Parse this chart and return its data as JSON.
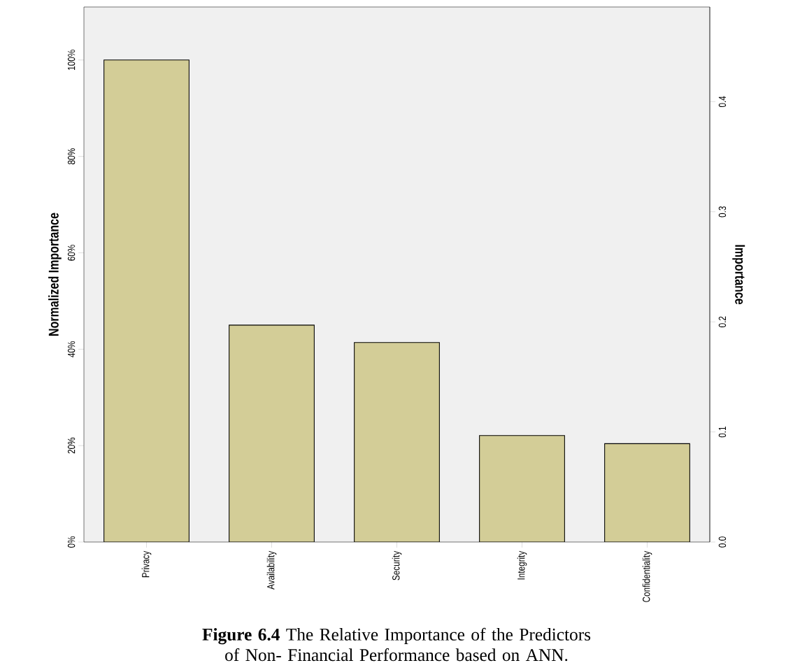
{
  "chart_data": {
    "type": "bar",
    "ylabel": "Normalized Importance",
    "y2label": "Importance",
    "categories": [
      "Privacy",
      "Availability",
      "Security",
      "Integrity",
      "Confidentiality"
    ],
    "values": [
      100,
      45,
      41.4,
      22.1,
      20.4
    ],
    "color": "#d3cd97",
    "ylim": [
      0,
      111
    ],
    "yticks": [
      {
        "value": 0,
        "label": "0%"
      },
      {
        "value": 20,
        "label": "20%"
      },
      {
        "value": 40,
        "label": "40%"
      },
      {
        "value": 60,
        "label": "60%"
      },
      {
        "value": 80,
        "label": "80%"
      },
      {
        "value": 100,
        "label": "100%"
      }
    ],
    "y2lim": [
      0,
      0.486
    ],
    "y2ticks": [
      {
        "value": 0,
        "label": "0.0"
      },
      {
        "value": 0.1,
        "label": "0.1"
      },
      {
        "value": 0.2,
        "label": "0.2"
      },
      {
        "value": 0.3,
        "label": "0.3"
      },
      {
        "value": 0.4,
        "label": "0.4"
      }
    ],
    "annotations": [
      "**Figure 6.4** The Relative Importance of the Predictors of Non- Financial Performance based on ANN."
    ]
  }
}
